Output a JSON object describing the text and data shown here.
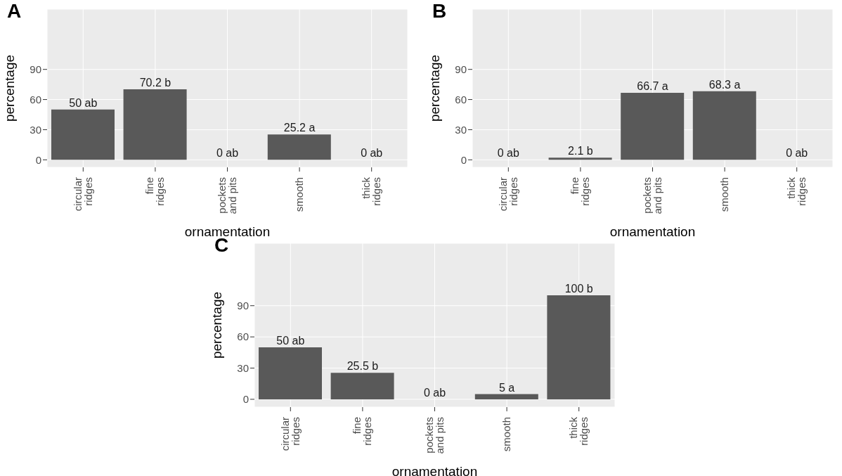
{
  "chart_data": [
    {
      "type": "bar",
      "title": "A",
      "xlabel": "ornamentation",
      "ylabel": "percentage",
      "categories": [
        "circular\nridges",
        "fine\nridges",
        "pockets\nand pits",
        "smooth",
        "thick\nridges"
      ],
      "values": [
        50,
        70.2,
        0,
        25.2,
        0
      ],
      "value_labels": [
        "50 ab",
        "70.2 b",
        "0 ab",
        "25.2 a",
        "0 ab"
      ],
      "color": "#595959",
      "ylim": [
        -7.5,
        150
      ],
      "yticks": [
        0,
        30,
        60,
        90
      ],
      "grid": true
    },
    {
      "type": "bar",
      "title": "B",
      "xlabel": "ornamentation",
      "ylabel": "percentage",
      "categories": [
        "circular\nridges",
        "fine\nridges",
        "pockets\nand pits",
        "smooth",
        "thick\nridges"
      ],
      "values": [
        0,
        2.1,
        66.7,
        68.3,
        0
      ],
      "value_labels": [
        "0 ab",
        "2.1 b",
        "66.7 a",
        "68.3 a",
        "0 ab"
      ],
      "color": "#595959",
      "ylim": [
        -7.5,
        150
      ],
      "yticks": [
        0,
        30,
        60,
        90
      ],
      "grid": true
    },
    {
      "type": "bar",
      "title": "C",
      "xlabel": "ornamentation",
      "ylabel": "percentage",
      "categories": [
        "circular\nridges",
        "fine\nridges",
        "pockets\nand pits",
        "smooth",
        "thick\nridges"
      ],
      "values": [
        50,
        25.5,
        0,
        5,
        100
      ],
      "value_labels": [
        "50 ab",
        "25.5 b",
        "0 ab",
        "5 a",
        "100 b"
      ],
      "color": "#595959",
      "ylim": [
        -7.5,
        150
      ],
      "yticks": [
        0,
        30,
        60,
        90
      ],
      "grid": true
    }
  ]
}
